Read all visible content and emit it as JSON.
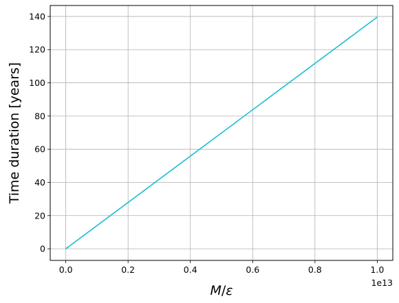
{
  "chart_data": {
    "type": "line",
    "xlabel": "M/ε",
    "xlabel_italic_parts": [
      "M",
      "ε"
    ],
    "ylabel": "Time duration [years]",
    "x_offset_label": "1e13",
    "x_scale_factor": 10000000000000.0,
    "xlim": [
      -0.05,
      1.05
    ],
    "ylim": [
      -7,
      146.6
    ],
    "x_ticks": [
      0.0,
      0.2,
      0.4,
      0.6,
      0.8,
      1.0
    ],
    "x_tick_labels": [
      "0.0",
      "0.2",
      "0.4",
      "0.6",
      "0.8",
      "1.0"
    ],
    "y_ticks": [
      0,
      20,
      40,
      60,
      80,
      100,
      120,
      140
    ],
    "y_tick_labels": [
      "0",
      "20",
      "40",
      "60",
      "80",
      "100",
      "120",
      "140"
    ],
    "grid": true,
    "legend": "none",
    "series": [
      {
        "color": "#d62728",
        "x": [
          0.0,
          0.008
        ],
        "y": [
          0.0,
          1.1
        ]
      },
      {
        "color": "#17becf",
        "x": [
          0.0,
          1.0
        ],
        "y": [
          0.0,
          139.6
        ]
      }
    ]
  }
}
